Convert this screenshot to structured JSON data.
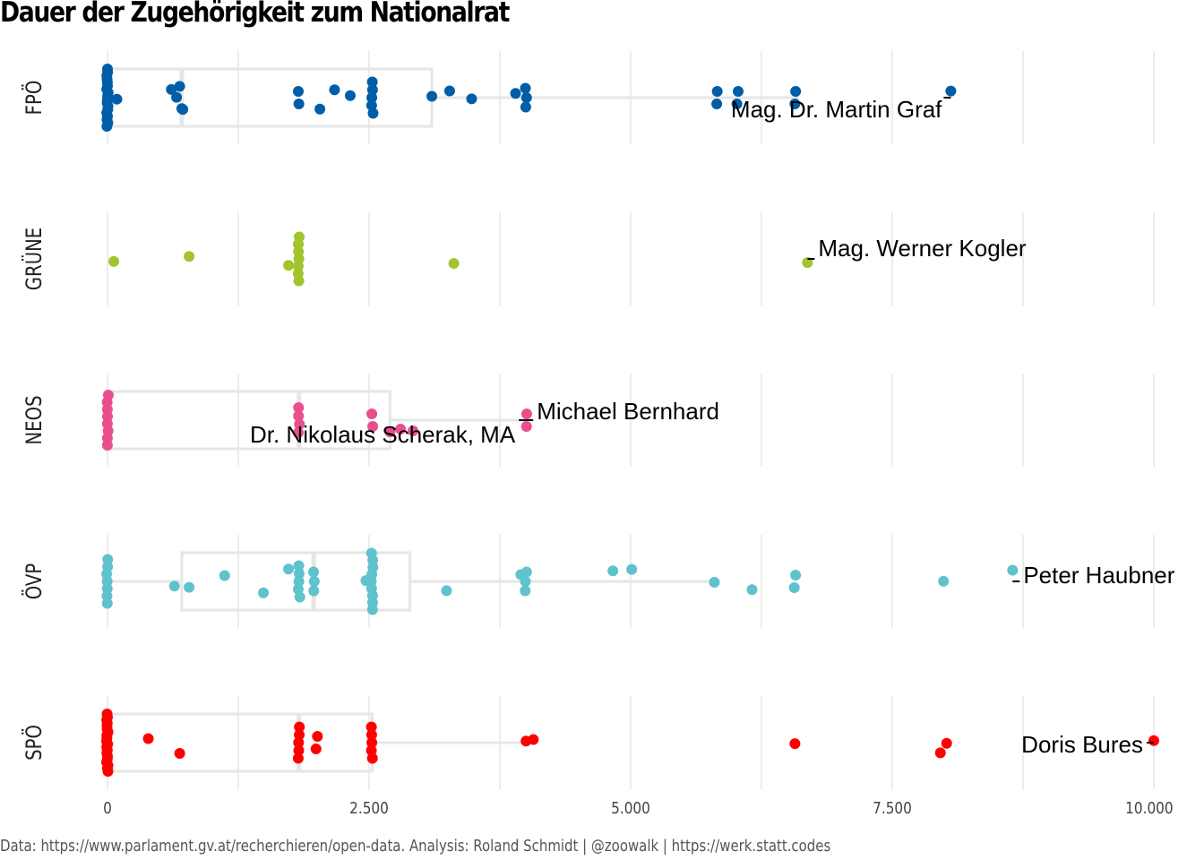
{
  "chart_data": {
    "type": "boxplot-jitter",
    "title": "Dauer der Zugehörigkeit zum Nationalrat",
    "caption": "Data: https://www.parlament.gv.at/recherchieren/open-data. Analysis: Roland Schmidt | @zoowalk | https://werk.statt.codes",
    "xlabel": "",
    "ylabel": "",
    "xlim": [
      0,
      10000
    ],
    "x_ticks": [
      0,
      2500,
      5000,
      7500,
      10000
    ],
    "x_tick_labels": [
      "0",
      "2.500",
      "5.000",
      "7.500",
      "10.000"
    ],
    "grid": true,
    "categories": [
      "FPÖ",
      "GRÜNE",
      "NEOS",
      "ÖVP",
      "SPÖ"
    ],
    "series": [
      {
        "name": "FPÖ",
        "color": "#005DA8",
        "box": {
          "q1": 0,
          "median": 710,
          "q3": 3100,
          "whisker_low": 0,
          "whisker_high": 6610
        },
        "points": [
          0,
          0,
          0,
          0,
          0,
          0,
          0,
          0,
          0,
          0,
          0,
          0,
          0,
          0,
          0,
          0,
          0,
          0,
          90,
          660,
          610,
          690,
          710,
          720,
          1830,
          1830,
          2030,
          2170,
          2320,
          2530,
          2530,
          2530,
          2530,
          2530,
          3100,
          3270,
          3480,
          3900,
          4000,
          4000,
          4000,
          5830,
          5830,
          6020,
          6020,
          6570,
          6570,
          8060
        ],
        "labels": [
          {
            "text": "Mag. Dr. Martin Graf",
            "value": 8060
          }
        ]
      },
      {
        "name": "GRÜNE",
        "color": "#A2C42E",
        "box": null,
        "points": [
          60,
          780,
          1730,
          1830,
          1830,
          1830,
          1830,
          1830,
          1830,
          1830,
          3310,
          6690
        ],
        "labels": [
          {
            "text": "Mag. Werner Kogler",
            "value": 6690
          }
        ]
      },
      {
        "name": "NEOS",
        "color": "#E84F8C",
        "box": {
          "q1": 0,
          "median": 1830,
          "q3": 2700,
          "whisker_low": 0,
          "whisker_high": 4000
        },
        "points": [
          0,
          0,
          0,
          0,
          0,
          0,
          0,
          0,
          1830,
          1830,
          1830,
          1830,
          2530,
          2530,
          2800,
          2700,
          2920,
          4000,
          4000
        ],
        "labels": [
          {
            "text": "Michael Bernhard",
            "value": 4000
          },
          {
            "text": "Dr. Nikolaus Scherak, MA",
            "value": 4000
          }
        ]
      },
      {
        "name": "ÖVP",
        "color": "#5FC2CD",
        "box": {
          "q1": 710,
          "median": 1970,
          "q3": 2890,
          "whisker_low": 0,
          "whisker_high": 5830
        },
        "points": [
          0,
          0,
          0,
          0,
          0,
          0,
          0,
          640,
          780,
          1120,
          1490,
          1730,
          1830,
          1830,
          1830,
          1830,
          1830,
          1970,
          1970,
          1970,
          2470,
          2530,
          2530,
          2530,
          2530,
          2530,
          2530,
          2530,
          2530,
          2530,
          3240,
          3950,
          4000,
          4000,
          4000,
          4830,
          5010,
          5800,
          6160,
          6570,
          6570,
          7990,
          8650
        ],
        "labels": [
          {
            "text": "Peter Haubner",
            "value": 8650
          }
        ]
      },
      {
        "name": "SPÖ",
        "color": "#FF0000",
        "box": {
          "q1": 0,
          "median": 1830,
          "q3": 2530,
          "whisker_low": 0,
          "whisker_high": 4050
        },
        "points": [
          0,
          0,
          0,
          0,
          0,
          0,
          0,
          0,
          0,
          0,
          0,
          0,
          0,
          0,
          0,
          0,
          0,
          0,
          0,
          0,
          390,
          690,
          1830,
          1830,
          1830,
          1830,
          1830,
          2000,
          2000,
          2530,
          2530,
          2530,
          2530,
          2530,
          4000,
          4070,
          6570,
          7960,
          8020,
          10000
        ],
        "labels": [
          {
            "text": "Doris Bures",
            "value": 10000
          }
        ]
      }
    ]
  }
}
